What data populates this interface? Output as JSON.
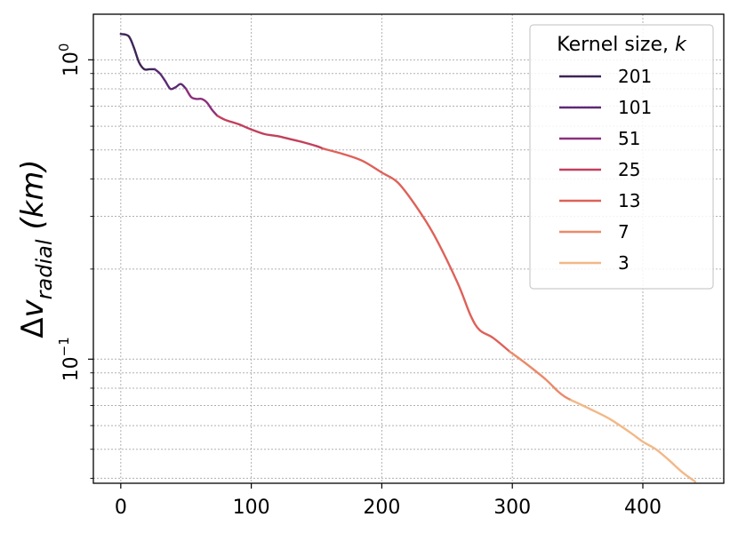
{
  "chart_data": {
    "type": "line",
    "title": "",
    "xlabel": "",
    "ylabel": "Δv_radial (km)",
    "ylabel_parts": {
      "base": "Δ",
      "var": "v",
      "sub": "radial",
      "unit": "(km)"
    },
    "xlim": [
      -21,
      462
    ],
    "ylim": [
      0.0385,
      1.42
    ],
    "yscale": "log",
    "grid": true,
    "xticks": [
      0,
      100,
      200,
      300,
      400
    ],
    "xtick_labels": [
      "0",
      "100",
      "200",
      "300",
      "400"
    ],
    "yticks": [
      {
        "base": "10",
        "exp": "0",
        "value": 1
      },
      {
        "base": "10",
        "exp": "−1",
        "value": 0.1
      }
    ],
    "legend": {
      "title": "Kernel size, ",
      "title_var": "k",
      "placement": "upper right"
    },
    "series": [
      {
        "name": "201",
        "color": "#3e2457",
        "x": [
          0,
          6,
          10,
          14,
          18,
          22,
          26
        ],
        "y": [
          1.22,
          1.2,
          1.1,
          0.98,
          0.93,
          0.93,
          0.93
        ]
      },
      {
        "name": "101",
        "color": "#5c2a73",
        "x": [
          26,
          30,
          34,
          38,
          42,
          46,
          50
        ],
        "y": [
          0.93,
          0.9,
          0.85,
          0.8,
          0.81,
          0.83,
          0.8
        ]
      },
      {
        "name": "51",
        "color": "#8c2f7d",
        "x": [
          50,
          54,
          58,
          62,
          66,
          70,
          74
        ],
        "y": [
          0.8,
          0.75,
          0.74,
          0.74,
          0.72,
          0.68,
          0.65
        ]
      },
      {
        "name": "25",
        "color": "#c2405c",
        "x": [
          74,
          80,
          90,
          100,
          110,
          120,
          130,
          140,
          150,
          155
        ],
        "y": [
          0.65,
          0.63,
          0.61,
          0.585,
          0.565,
          0.556,
          0.543,
          0.53,
          0.515,
          0.505
        ]
      },
      {
        "name": "13",
        "color": "#de6159",
        "x": [
          155,
          170,
          185,
          200,
          212,
          225,
          240,
          258,
          268,
          275,
          285,
          298
        ],
        "y": [
          0.505,
          0.485,
          0.46,
          0.42,
          0.39,
          0.33,
          0.26,
          0.18,
          0.14,
          0.125,
          0.118,
          0.106
        ]
      },
      {
        "name": "7",
        "color": "#ea8a6a",
        "x": [
          298,
          310,
          325,
          335,
          340,
          345
        ],
        "y": [
          0.106,
          0.097,
          0.086,
          0.078,
          0.075,
          0.073
        ]
      },
      {
        "name": "3",
        "color": "#f2b887",
        "x": [
          345,
          360,
          375,
          390,
          400,
          410,
          420,
          430,
          440
        ],
        "y": [
          0.073,
          0.068,
          0.063,
          0.057,
          0.053,
          0.05,
          0.046,
          0.042,
          0.039
        ]
      }
    ]
  }
}
